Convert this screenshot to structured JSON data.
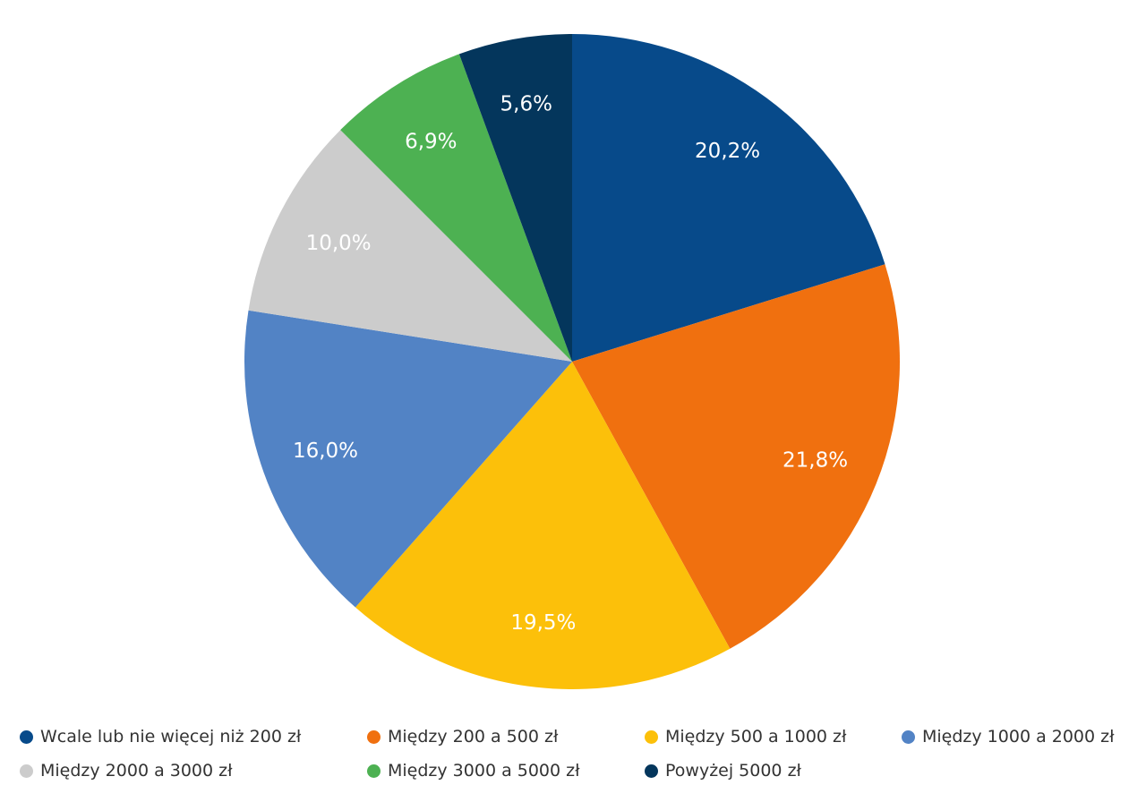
{
  "chart_data": {
    "type": "pie",
    "title": "",
    "start_angle_deg": 0,
    "direction": "clockwise",
    "slices": [
      {
        "label": "Wcale lub nie więcej niż 200 zł",
        "value": 20.2,
        "display": "20,2%",
        "color": "#074a8a"
      },
      {
        "label": "Między 200 a 500 zł",
        "value": 21.8,
        "display": "21,8%",
        "color": "#f0700f"
      },
      {
        "label": "Między 500 a 1000 zł",
        "value": 19.5,
        "display": "19,5%",
        "color": "#fcc00a"
      },
      {
        "label": "Między 1000 a 2000 zł",
        "value": 16.0,
        "display": "16,0%",
        "color": "#5283c5"
      },
      {
        "label": "Między 2000 a 3000 zł",
        "value": 10.0,
        "display": "10,0%",
        "color": "#cccccc"
      },
      {
        "label": "Między 3000 a 5000 zł",
        "value": 6.9,
        "display": "6,9%",
        "color": "#4db152"
      },
      {
        "label": "Powyżej 5000 zł",
        "value": 5.6,
        "display": "5,6%",
        "color": "#04365c"
      }
    ],
    "legend_position": "bottom"
  }
}
